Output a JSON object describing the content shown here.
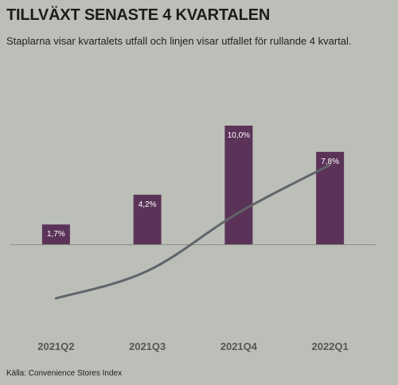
{
  "title": "TILLVÄXT SENASTE 4 KVARTALEN",
  "subtitle": "Staplarna visar kvartalets utfall och linjen visar utfallet för rullande 4 kvartal.",
  "source": "Källa: Convenience Stores Index",
  "colors": {
    "background": "#bcbfb8",
    "bar": "#5b3358",
    "line": "#62646a",
    "baseline": "#8a8c88",
    "bar_label": "#ffffff",
    "tick_label": "#555555"
  },
  "chart_data": {
    "type": "bar",
    "categories": [
      "2021Q2",
      "2021Q3",
      "2021Q4",
      "2022Q1"
    ],
    "series": [
      {
        "type": "bar",
        "values": [
          1.7,
          4.2,
          10.0,
          7.8
        ],
        "labels": [
          "1,7%",
          "4,2%",
          "10,0%",
          "7,8%"
        ]
      },
      {
        "type": "line",
        "values": [
          -4.5,
          -2.2,
          2.7,
          6.7
        ]
      }
    ],
    "ylim": [
      -6.5,
      12
    ],
    "grid": false,
    "legend": "none",
    "xlabel": "",
    "ylabel": ""
  }
}
